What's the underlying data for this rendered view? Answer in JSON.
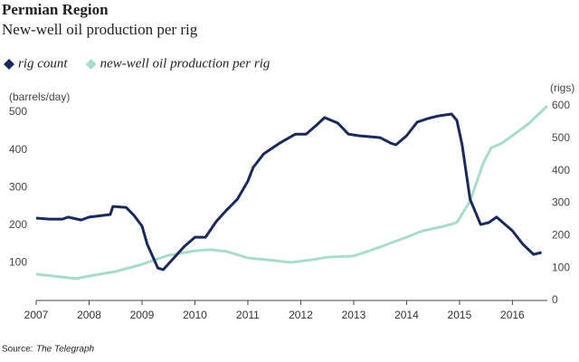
{
  "chart_data": {
    "type": "line",
    "title": "Permian Region",
    "subtitle": "New-well oil production per rig",
    "y_label": "(barrels/day)",
    "y2_label": "(rigs)",
    "source_label": "Source:",
    "source": "The Telegraph",
    "xlim": [
      2007,
      2016.66
    ],
    "xticks": [
      2007,
      2008,
      2009,
      2010,
      2011,
      2012,
      2013,
      2014,
      2015,
      2016
    ],
    "ylim": [
      0,
      517
    ],
    "yticks": [
      100,
      200,
      300,
      400,
      500
    ],
    "y2lim": [
      0,
      600
    ],
    "y2ticks": [
      0,
      100,
      200,
      300,
      400,
      500,
      600
    ],
    "series": [
      {
        "name": "rig count",
        "color": "#1b2a5a",
        "axis": "y2",
        "x": [
          2007.0,
          2007.25,
          2007.5,
          2007.6,
          2007.85,
          2008.0,
          2008.25,
          2008.4,
          2008.45,
          2008.7,
          2008.85,
          2009.0,
          2009.1,
          2009.3,
          2009.4,
          2009.6,
          2009.8,
          2010.0,
          2010.2,
          2010.4,
          2010.6,
          2010.8,
          2011.0,
          2011.1,
          2011.3,
          2011.6,
          2011.9,
          2012.1,
          2012.3,
          2012.45,
          2012.7,
          2012.9,
          2013.1,
          2013.3,
          2013.5,
          2013.7,
          2013.8,
          2014.0,
          2014.2,
          2014.4,
          2014.6,
          2014.85,
          2014.95,
          2015.05,
          2015.2,
          2015.4,
          2015.55,
          2015.7,
          2015.8,
          2016.0,
          2016.2,
          2016.4,
          2016.55
        ],
        "values": [
          254,
          251,
          251,
          257,
          248,
          257,
          262,
          265,
          290,
          287,
          262,
          229,
          173,
          100,
          95,
          131,
          167,
          195,
          195,
          243,
          279,
          312,
          368,
          410,
          452,
          485,
          513,
          513,
          541,
          564,
          547,
          513,
          508,
          505,
          502,
          485,
          480,
          508,
          550,
          561,
          569,
          575,
          555,
          480,
          312,
          234,
          240,
          257,
          243,
          215,
          173,
          142,
          148
        ]
      },
      {
        "name": "new-well oil production per rig",
        "color": "#a8dccb",
        "axis": "y",
        "x": [
          2007.0,
          2007.5,
          2007.75,
          2008.0,
          2008.5,
          2009.0,
          2009.5,
          2010.0,
          2010.3,
          2010.6,
          2011.0,
          2011.5,
          2011.8,
          2012.2,
          2012.5,
          2013.0,
          2013.5,
          2014.0,
          2014.3,
          2014.7,
          2014.95,
          2015.2,
          2015.45,
          2015.6,
          2015.8,
          2016.0,
          2016.3,
          2016.66
        ],
        "values": [
          70,
          62,
          58,
          65,
          77,
          96,
          120,
          132,
          135,
          130,
          113,
          106,
          101,
          108,
          115,
          118,
          142,
          168,
          185,
          197,
          207,
          264,
          365,
          406,
          418,
          438,
          469,
          517
        ]
      }
    ]
  }
}
